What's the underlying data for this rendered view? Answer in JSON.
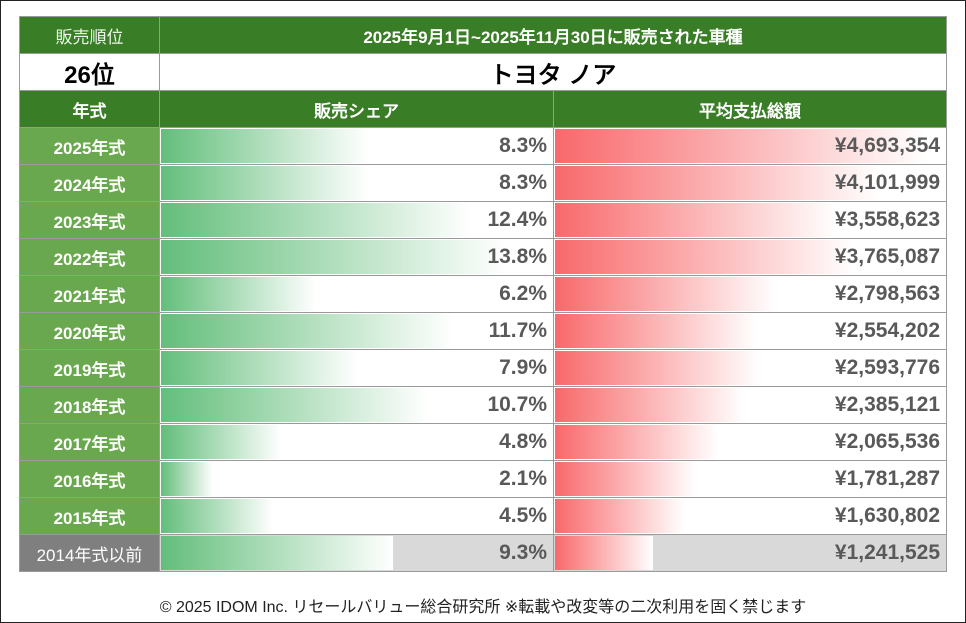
{
  "header": {
    "rank_label": "販売順位",
    "period_title": "2025年9月1日~2025年11月30日に販売された車種",
    "rank_value": "26位",
    "car_name": "トヨタ ノア",
    "col_year": "年式",
    "col_share": "販売シェア",
    "col_price": "平均支払総額"
  },
  "chart_data": {
    "type": "table",
    "title": "2025年9月1日~2025年11月30日に販売された車種",
    "categories": [
      "2025年式",
      "2024年式",
      "2023年式",
      "2022年式",
      "2021年式",
      "2020年式",
      "2019年式",
      "2018年式",
      "2017年式",
      "2016年式",
      "2015年式",
      "2014年式以前"
    ],
    "series": [
      {
        "name": "販売シェア",
        "unit": "%",
        "values": [
          8.3,
          8.3,
          12.4,
          13.8,
          6.2,
          11.7,
          7.9,
          10.7,
          4.8,
          2.1,
          4.5,
          9.3
        ],
        "labels": [
          "8.3%",
          "8.3%",
          "12.4%",
          "13.8%",
          "6.2%",
          "11.7%",
          "7.9%",
          "10.7%",
          "4.8%",
          "2.1%",
          "4.5%",
          "9.3%"
        ],
        "color": "#63be7b"
      },
      {
        "name": "平均支払総額",
        "unit": "円",
        "values": [
          4693354,
          4101999,
          3558623,
          3765087,
          2798563,
          2554202,
          2593776,
          2385121,
          2065536,
          1781287,
          1630802,
          1241525
        ],
        "labels": [
          "¥4,693,354",
          "¥4,101,999",
          "¥3,558,623",
          "¥3,765,087",
          "¥2,798,563",
          "¥2,554,202",
          "¥2,593,776",
          "¥2,385,121",
          "¥2,065,536",
          "¥1,781,287",
          "¥1,630,802",
          "¥1,241,525"
        ],
        "color": "#f8696b"
      }
    ]
  },
  "colors": {
    "header_green": "#3a7d27",
    "year_green": "#6aa84f",
    "last_row_gray": "#7f7f7f",
    "share_bar": "#63be7b",
    "price_bar": "#f8696b"
  },
  "footer": "© 2025 IDOM Inc. リセールバリュー総合研究所 ※転載や改変等の二次利用を固く禁じます"
}
